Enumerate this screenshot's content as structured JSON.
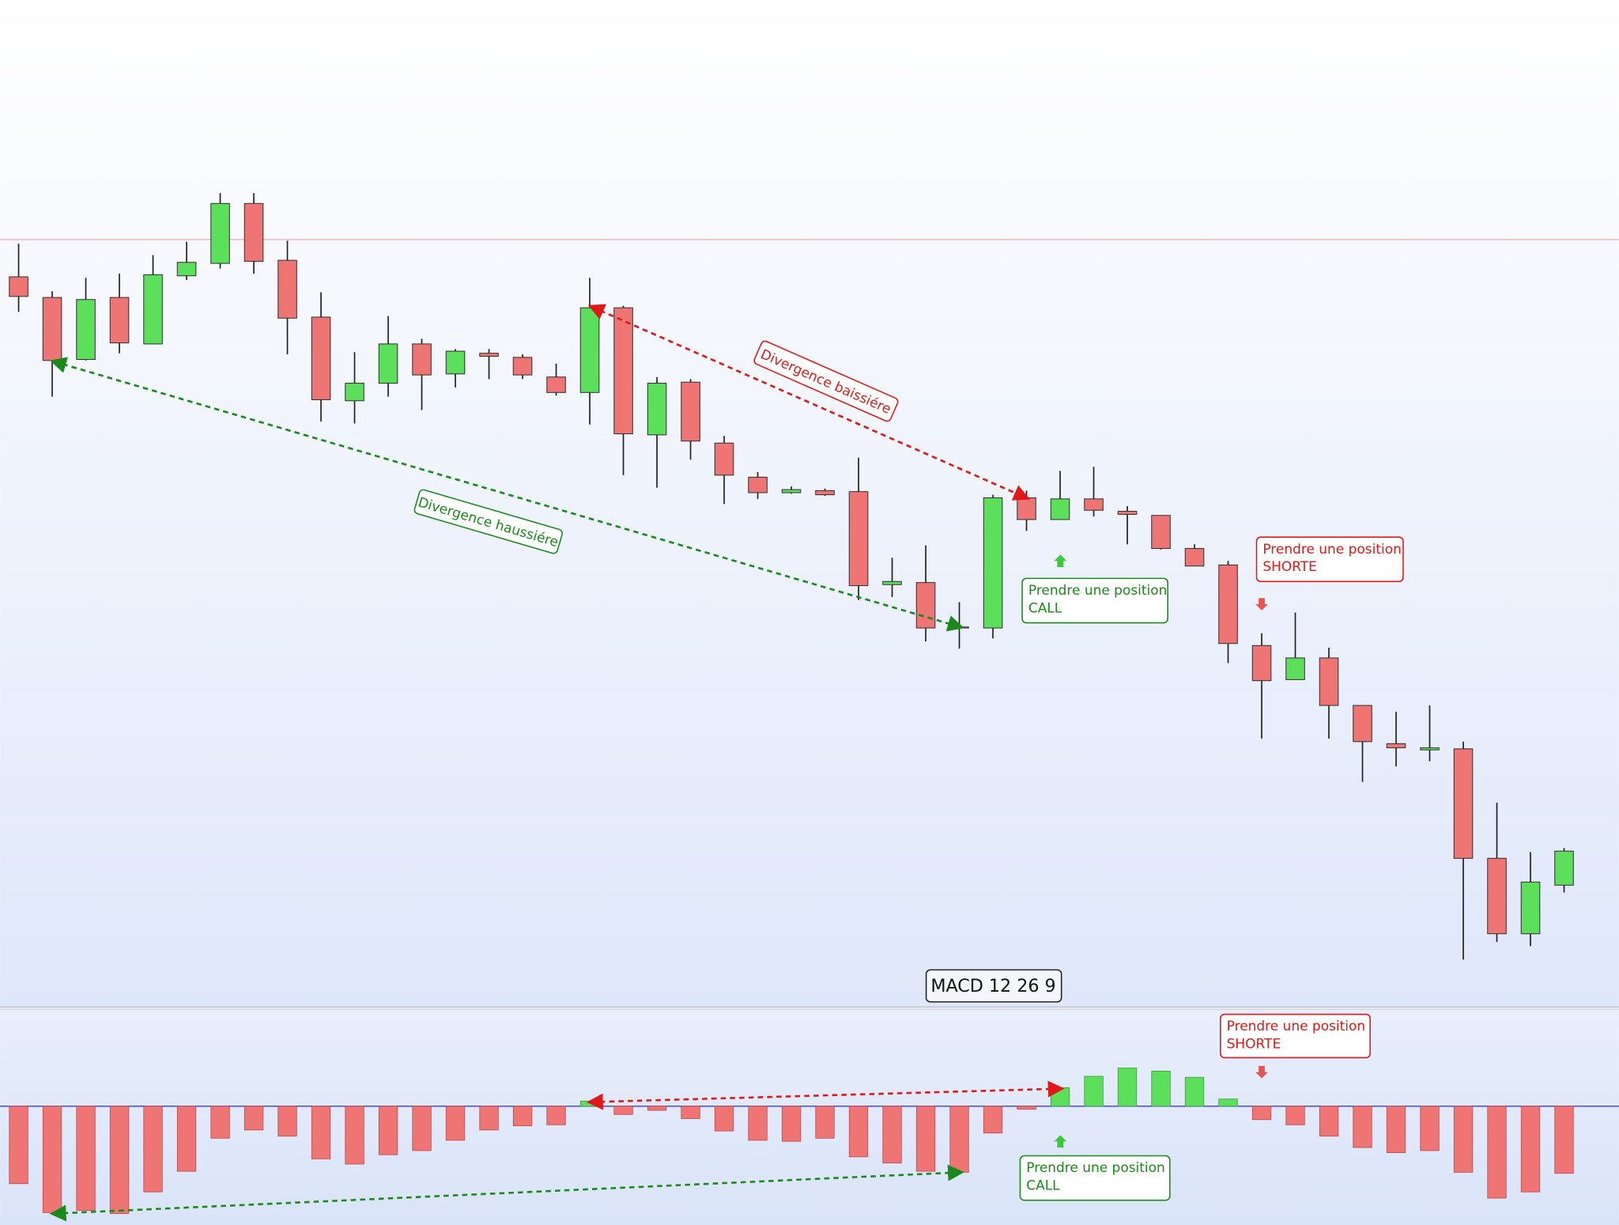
{
  "chart_data": [
    {
      "type": "candlestick",
      "up_color": "#5ce05c",
      "down_color": "#ef7474",
      "ylim": [
        25,
        1000
      ],
      "reference_line": {
        "value": 768,
        "color": "#f0a8a8"
      },
      "open": [
        732,
        712,
        652,
        712,
        667,
        733,
        745,
        803,
        748,
        693,
        612,
        629,
        667,
        638,
        658,
        654,
        635,
        620,
        702,
        579,
        630,
        571,
        538,
        523,
        525,
        524,
        434,
        436,
        393,
        392,
        518,
        497,
        517,
        505,
        501,
        469,
        453,
        375,
        342,
        363,
        317,
        280,
        274,
        275,
        169,
        96,
        143
      ],
      "high": [
        764,
        718,
        731,
        735,
        753,
        766,
        813,
        813,
        767,
        717,
        659,
        694,
        672,
        662,
        662,
        657,
        648,
        731,
        704,
        635,
        633,
        578,
        543,
        529,
        527,
        557,
        460,
        472,
        417,
        521,
        525,
        544,
        548,
        510,
        501,
        473,
        457,
        387,
        407,
        373,
        317,
        311,
        317,
        282,
        223,
        175,
        179
      ],
      "low": [
        698,
        616,
        651,
        658,
        667,
        729,
        740,
        735,
        657,
        592,
        590,
        616,
        603,
        625,
        633,
        633,
        617,
        589,
        540,
        528,
        555,
        512,
        517,
        522,
        520,
        419,
        422,
        379,
        372,
        382,
        486,
        497,
        500,
        473,
        468,
        452,
        358,
        285,
        342,
        285,
        243,
        258,
        263,
        71,
        88,
        84,
        136
      ],
      "close": [
        713,
        651,
        710,
        668,
        734,
        746,
        803,
        747,
        692,
        613,
        629,
        667,
        637,
        660,
        655,
        637,
        620,
        702,
        580,
        629,
        573,
        540,
        523,
        526,
        521,
        433,
        437,
        392,
        392,
        518,
        497,
        517,
        506,
        502,
        469,
        452,
        377,
        341,
        363,
        317,
        282,
        276,
        276,
        169,
        96,
        146,
        176
      ],
      "annotations": [
        {
          "lines": [
            "Divergence haussiére"
          ],
          "color": "#1a8a1a"
        },
        {
          "lines": [
            "Divergence baissiére"
          ],
          "color": "#e01818"
        },
        {
          "lines": [
            "Prendre une position",
            "CALL"
          ],
          "color": "#1a8a1a"
        },
        {
          "lines": [
            "Prendre une position",
            "SHORTE"
          ],
          "color": "#e01818"
        }
      ]
    },
    {
      "type": "bar",
      "title": "MACD 12 26 9",
      "up_color": "#5ce05c",
      "down_color": "#ef7474",
      "ylim": [
        -115,
        94
      ],
      "values": [
        -75,
        -103,
        -101,
        -104,
        -83,
        -63,
        -31,
        -23,
        -29,
        -51,
        -56,
        -47,
        -43,
        -33,
        -23,
        -19,
        -18,
        5,
        -8,
        -4,
        -12,
        -24,
        -33,
        -34,
        -31,
        -49,
        -55,
        -63,
        -64,
        -26,
        -3,
        18,
        29,
        37,
        34,
        28,
        7,
        -13,
        -18,
        -29,
        -40,
        -45,
        -43,
        -64,
        -89,
        -83,
        -65
      ],
      "annotations": [
        {
          "lines": [
            "Prendre une position",
            "SHORTE"
          ],
          "color": "#e01818"
        },
        {
          "lines": [
            "Prendre une position",
            "CALL"
          ],
          "color": "#1a8a1a"
        }
      ]
    }
  ]
}
